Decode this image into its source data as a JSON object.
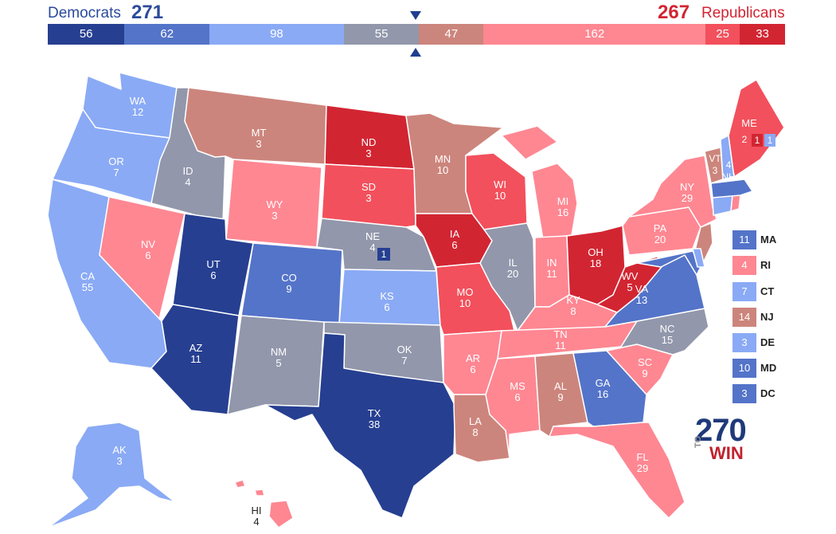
{
  "header": {
    "dem_label": "Democrats",
    "dem_votes": "271",
    "rep_votes": "267",
    "rep_label": "Republicans"
  },
  "bar": [
    {
      "value": "56",
      "color": "#263f91",
      "ev": 56
    },
    {
      "value": "62",
      "color": "#5474c9",
      "ev": 62
    },
    {
      "value": "98",
      "color": "#8aaaf5",
      "ev": 98
    },
    {
      "value": "55",
      "color": "#9297ab",
      "ev": 55
    },
    {
      "value": "47",
      "color": "#cc857c",
      "ev": 47
    },
    {
      "value": "162",
      "color": "#fe8792",
      "ev": 162
    },
    {
      "value": "25",
      "color": "#f2505c",
      "ev": 25
    },
    {
      "value": "33",
      "color": "#d22532",
      "ev": 33
    }
  ],
  "colors": {
    "safe_d": "#263f91",
    "likely_d": "#5474c9",
    "lean_d": "#8aaaf5",
    "tossup": "#9297ab",
    "tilt_r": "#cc857c",
    "lean_r": "#fe8792",
    "likely_r": "#f2505c",
    "safe_r": "#d22532"
  },
  "states": {
    "WA": {
      "abbr": "WA",
      "ev": "12"
    },
    "OR": {
      "abbr": "OR",
      "ev": "7"
    },
    "CA": {
      "abbr": "CA",
      "ev": "55"
    },
    "ID": {
      "abbr": "ID",
      "ev": "4"
    },
    "NV": {
      "abbr": "NV",
      "ev": "6"
    },
    "MT": {
      "abbr": "MT",
      "ev": "3"
    },
    "WY": {
      "abbr": "WY",
      "ev": "3"
    },
    "UT": {
      "abbr": "UT",
      "ev": "6"
    },
    "AZ": {
      "abbr": "AZ",
      "ev": "11"
    },
    "CO": {
      "abbr": "CO",
      "ev": "9"
    },
    "NM": {
      "abbr": "NM",
      "ev": "5"
    },
    "ND": {
      "abbr": "ND",
      "ev": "3"
    },
    "SD": {
      "abbr": "SD",
      "ev": "3"
    },
    "NE": {
      "abbr": "NE",
      "ev": "4",
      "district": "1"
    },
    "KS": {
      "abbr": "KS",
      "ev": "6"
    },
    "OK": {
      "abbr": "OK",
      "ev": "7"
    },
    "TX": {
      "abbr": "TX",
      "ev": "38"
    },
    "MN": {
      "abbr": "MN",
      "ev": "10"
    },
    "IA": {
      "abbr": "IA",
      "ev": "6"
    },
    "MO": {
      "abbr": "MO",
      "ev": "10"
    },
    "AR": {
      "abbr": "AR",
      "ev": "6"
    },
    "LA": {
      "abbr": "LA",
      "ev": "8"
    },
    "WI": {
      "abbr": "WI",
      "ev": "10"
    },
    "IL": {
      "abbr": "IL",
      "ev": "20"
    },
    "MI": {
      "abbr": "MI",
      "ev": "16"
    },
    "IN": {
      "abbr": "IN",
      "ev": "11"
    },
    "OH": {
      "abbr": "OH",
      "ev": "18"
    },
    "KY": {
      "abbr": "KY",
      "ev": "8"
    },
    "TN": {
      "abbr": "TN",
      "ev": "11"
    },
    "MS": {
      "abbr": "MS",
      "ev": "6"
    },
    "AL": {
      "abbr": "AL",
      "ev": "9"
    },
    "GA": {
      "abbr": "GA",
      "ev": "16"
    },
    "FL": {
      "abbr": "FL",
      "ev": "29"
    },
    "SC": {
      "abbr": "SC",
      "ev": "9"
    },
    "NC": {
      "abbr": "NC",
      "ev": "15"
    },
    "VA": {
      "abbr": "VA",
      "ev": "13"
    },
    "WV": {
      "abbr": "WV",
      "ev": "5"
    },
    "PA": {
      "abbr": "PA",
      "ev": "20"
    },
    "NY": {
      "abbr": "NY",
      "ev": "29"
    },
    "VT": {
      "abbr": "VT",
      "ev": "3"
    },
    "NH": {
      "abbr": "NH",
      "ev": "4"
    },
    "ME": {
      "abbr": "ME",
      "ev_1": "2",
      "ev_2": "1",
      "ev_3": "1"
    },
    "AK": {
      "abbr": "AK",
      "ev": "3"
    },
    "HI": {
      "abbr": "HI",
      "ev": "4"
    }
  },
  "small_states": [
    {
      "ev": "11",
      "name": "MA",
      "color": "#5474c9"
    },
    {
      "ev": "4",
      "name": "RI",
      "color": "#fe8792"
    },
    {
      "ev": "7",
      "name": "CT",
      "color": "#8aaaf5"
    },
    {
      "ev": "14",
      "name": "NJ",
      "color": "#cc857c"
    },
    {
      "ev": "3",
      "name": "DE",
      "color": "#8aaaf5"
    },
    {
      "ev": "10",
      "name": "MD",
      "color": "#5474c9"
    },
    {
      "ev": "3",
      "name": "DC",
      "color": "#5474c9"
    }
  ],
  "logo": {
    "number": "270",
    "to": "TO",
    "win": "WIN"
  }
}
